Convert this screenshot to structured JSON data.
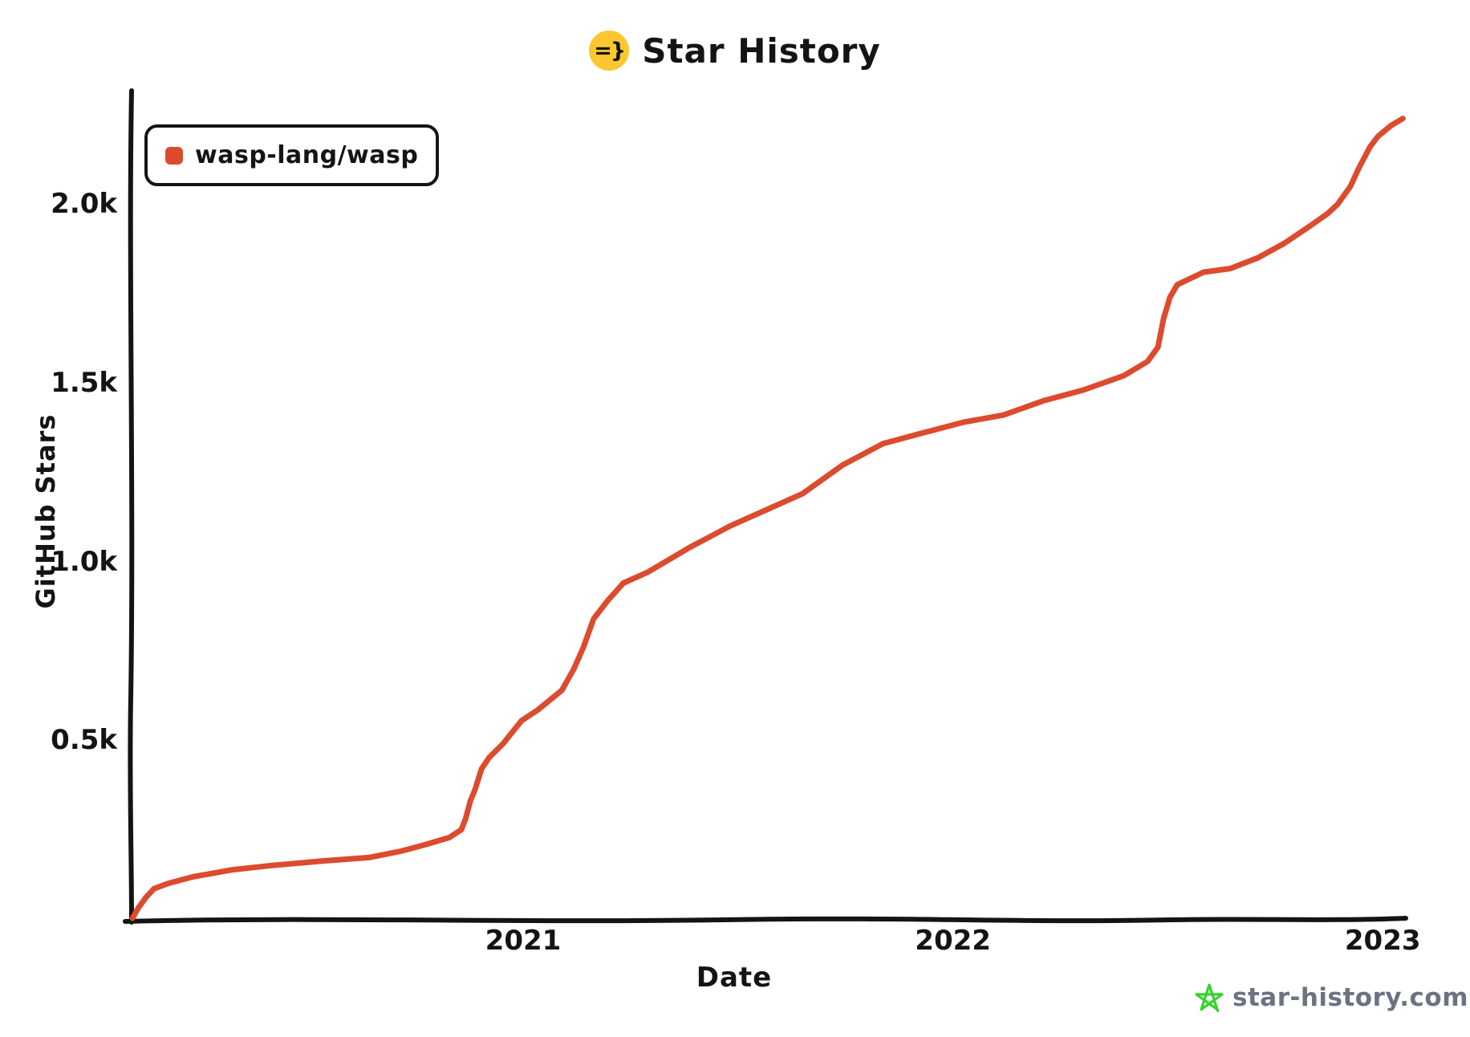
{
  "title_emoji": "=}",
  "colors": {
    "series": "#dc4b2e",
    "axis": "#141414",
    "emoji_bg": "#fcc72e",
    "watermark_text": "#6b7280",
    "watermark_icon": "#35d32b"
  },
  "legend": {
    "series_label": "wasp-lang/wasp"
  },
  "watermark": {
    "text": "star-history.com",
    "icon": "star-doodle-icon"
  },
  "chart_data": {
    "type": "line",
    "title": "Star History",
    "xlabel": "Date",
    "ylabel": "GitHub Stars",
    "x_unit": "decimal_year",
    "xlim": [
      2020.087,
      2023.05
    ],
    "ylim": [
      0,
      2320
    ],
    "grid": false,
    "legend_position": "top-left",
    "x_ticks": [
      {
        "value": 2021,
        "label": "2021"
      },
      {
        "value": 2022,
        "label": "2022"
      },
      {
        "value": 2023,
        "label": "2023"
      }
    ],
    "y_ticks": [
      {
        "value": 500,
        "label": "0.5k"
      },
      {
        "value": 1000,
        "label": "1.0k"
      },
      {
        "value": 1500,
        "label": "1.5k"
      },
      {
        "value": 2000,
        "label": "2.0k"
      }
    ],
    "series": [
      {
        "name": "wasp-lang/wasp",
        "color": "#dc4b2e",
        "points": [
          [
            2020.091,
            2
          ],
          [
            2020.104,
            30
          ],
          [
            2020.122,
            60
          ],
          [
            2020.141,
            85
          ],
          [
            2020.175,
            100
          ],
          [
            2020.231,
            118
          ],
          [
            2020.324,
            138
          ],
          [
            2020.417,
            150
          ],
          [
            2020.529,
            162
          ],
          [
            2020.641,
            172
          ],
          [
            2020.716,
            190
          ],
          [
            2020.772,
            208
          ],
          [
            2020.828,
            228
          ],
          [
            2020.856,
            250
          ],
          [
            2020.866,
            280
          ],
          [
            2020.877,
            330
          ],
          [
            2020.888,
            362
          ],
          [
            2020.903,
            420
          ],
          [
            2020.921,
            452
          ],
          [
            2020.953,
            490
          ],
          [
            2020.996,
            555
          ],
          [
            2021.034,
            585
          ],
          [
            2021.09,
            640
          ],
          [
            2021.118,
            700
          ],
          [
            2021.14,
            760
          ],
          [
            2021.164,
            840
          ],
          [
            2021.196,
            890
          ],
          [
            2021.233,
            940
          ],
          [
            2021.289,
            970
          ],
          [
            2021.388,
            1040
          ],
          [
            2021.482,
            1100
          ],
          [
            2021.575,
            1150
          ],
          [
            2021.65,
            1190
          ],
          [
            2021.743,
            1270
          ],
          [
            2021.837,
            1330
          ],
          [
            2021.93,
            1360
          ],
          [
            2022.024,
            1390
          ],
          [
            2022.117,
            1410
          ],
          [
            2022.21,
            1450
          ],
          [
            2022.303,
            1480
          ],
          [
            2022.397,
            1520
          ],
          [
            2022.453,
            1560
          ],
          [
            2022.477,
            1600
          ],
          [
            2022.49,
            1680
          ],
          [
            2022.505,
            1740
          ],
          [
            2022.522,
            1775
          ],
          [
            2022.583,
            1810
          ],
          [
            2022.645,
            1820
          ],
          [
            2022.709,
            1850
          ],
          [
            2022.77,
            1890
          ],
          [
            2022.832,
            1940
          ],
          [
            2022.873,
            1975
          ],
          [
            2022.895,
            2000
          ],
          [
            2022.925,
            2050
          ],
          [
            2022.944,
            2100
          ],
          [
            2022.97,
            2160
          ],
          [
            2022.989,
            2190
          ],
          [
            2023.019,
            2220
          ],
          [
            2023.047,
            2240
          ]
        ]
      }
    ]
  }
}
